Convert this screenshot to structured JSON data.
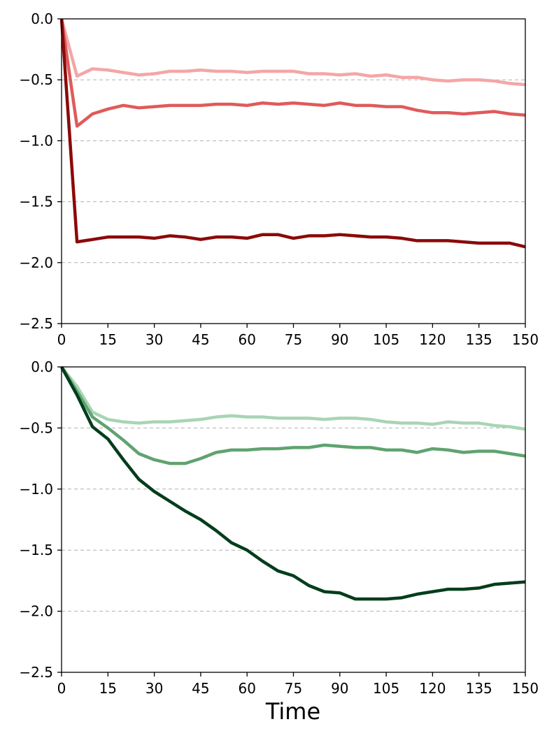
{
  "chart_data": [
    {
      "type": "line",
      "title": "",
      "xlabel": "",
      "ylabel": "",
      "xlim": [
        0,
        150
      ],
      "ylim": [
        -2.5,
        0.0
      ],
      "xticks": [
        "0",
        "15",
        "30",
        "45",
        "60",
        "75",
        "90",
        "105",
        "120",
        "135",
        "150"
      ],
      "yticks": [
        "0.0",
        "−0.5",
        "−1.0",
        "−1.5",
        "−2.0",
        "−2.5"
      ],
      "grid": "horizontal-dashed",
      "x": [
        0,
        5,
        10,
        15,
        20,
        25,
        30,
        35,
        40,
        45,
        50,
        55,
        60,
        65,
        70,
        75,
        80,
        85,
        90,
        95,
        100,
        105,
        110,
        115,
        120,
        125,
        130,
        135,
        140,
        145,
        150
      ],
      "series": [
        {
          "color": "#f4a6a6",
          "values": [
            0.0,
            -0.47,
            -0.41,
            -0.42,
            -0.44,
            -0.46,
            -0.45,
            -0.43,
            -0.43,
            -0.42,
            -0.43,
            -0.43,
            -0.44,
            -0.43,
            -0.43,
            -0.43,
            -0.45,
            -0.45,
            -0.46,
            -0.45,
            -0.47,
            -0.46,
            -0.48,
            -0.48,
            -0.5,
            -0.51,
            -0.5,
            -0.5,
            -0.51,
            -0.53,
            -0.54
          ]
        },
        {
          "color": "#e05a5a",
          "values": [
            0.0,
            -0.88,
            -0.78,
            -0.74,
            -0.71,
            -0.73,
            -0.72,
            -0.71,
            -0.71,
            -0.71,
            -0.7,
            -0.7,
            -0.71,
            -0.69,
            -0.7,
            -0.69,
            -0.7,
            -0.71,
            -0.69,
            -0.71,
            -0.71,
            -0.72,
            -0.72,
            -0.75,
            -0.77,
            -0.77,
            -0.78,
            -0.77,
            -0.76,
            -0.78,
            -0.79
          ]
        },
        {
          "color": "#8b0a0a",
          "values": [
            0.0,
            -1.83,
            -1.81,
            -1.79,
            -1.79,
            -1.79,
            -1.8,
            -1.78,
            -1.79,
            -1.81,
            -1.79,
            -1.79,
            -1.8,
            -1.77,
            -1.77,
            -1.8,
            -1.78,
            -1.78,
            -1.77,
            -1.78,
            -1.79,
            -1.79,
            -1.8,
            -1.82,
            -1.82,
            -1.82,
            -1.83,
            -1.84,
            -1.84,
            -1.84,
            -1.87
          ]
        }
      ]
    },
    {
      "type": "line",
      "title": "",
      "xlabel": "Time",
      "ylabel": "",
      "xlim": [
        0,
        150
      ],
      "ylim": [
        -2.5,
        0.0
      ],
      "xticks": [
        "0",
        "15",
        "30",
        "45",
        "60",
        "75",
        "90",
        "105",
        "120",
        "135",
        "150"
      ],
      "yticks": [
        "0.0",
        "−0.5",
        "−1.0",
        "−1.5",
        "−2.0",
        "−2.5"
      ],
      "grid": "horizontal-dashed",
      "x": [
        0,
        5,
        10,
        15,
        20,
        25,
        30,
        35,
        40,
        45,
        50,
        55,
        60,
        65,
        70,
        75,
        80,
        85,
        90,
        95,
        100,
        105,
        110,
        115,
        120,
        125,
        130,
        135,
        140,
        145,
        150
      ],
      "series": [
        {
          "color": "#a8d5b5",
          "values": [
            0.0,
            -0.16,
            -0.37,
            -0.43,
            -0.45,
            -0.46,
            -0.45,
            -0.45,
            -0.44,
            -0.43,
            -0.41,
            -0.4,
            -0.41,
            -0.41,
            -0.42,
            -0.42,
            -0.42,
            -0.43,
            -0.42,
            -0.42,
            -0.43,
            -0.45,
            -0.46,
            -0.46,
            -0.47,
            -0.45,
            -0.46,
            -0.46,
            -0.48,
            -0.49,
            -0.51
          ]
        },
        {
          "color": "#5fa36f",
          "values": [
            0.0,
            -0.2,
            -0.41,
            -0.5,
            -0.6,
            -0.71,
            -0.76,
            -0.79,
            -0.79,
            -0.75,
            -0.7,
            -0.68,
            -0.68,
            -0.67,
            -0.67,
            -0.66,
            -0.66,
            -0.64,
            -0.65,
            -0.66,
            -0.66,
            -0.68,
            -0.68,
            -0.7,
            -0.67,
            -0.68,
            -0.7,
            -0.69,
            -0.69,
            -0.71,
            -0.73
          ]
        },
        {
          "color": "#033d1c",
          "values": [
            0.0,
            -0.23,
            -0.49,
            -0.59,
            -0.76,
            -0.92,
            -1.02,
            -1.1,
            -1.18,
            -1.25,
            -1.34,
            -1.44,
            -1.5,
            -1.59,
            -1.67,
            -1.71,
            -1.79,
            -1.84,
            -1.85,
            -1.9,
            -1.9,
            -1.9,
            -1.89,
            -1.86,
            -1.84,
            -1.82,
            -1.82,
            -1.81,
            -1.78,
            -1.77,
            -1.76
          ]
        }
      ]
    }
  ]
}
